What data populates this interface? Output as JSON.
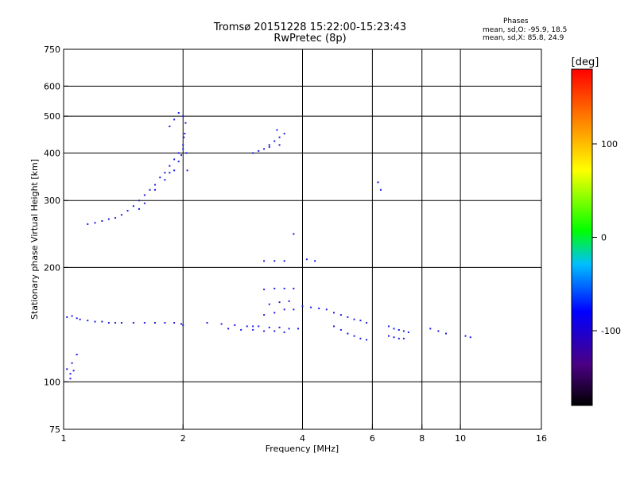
{
  "header": {
    "title_line1": "Tromsø 20151228 15:22:00-15:23:43",
    "title_line2": "RwPretec (8p)",
    "phases_heading": "Phases",
    "phases_o": "mean, sd,O: -95.9, 18.5",
    "phases_x": "mean, sd,X:  85.8, 24.9"
  },
  "chart_data": {
    "type": "scatter",
    "xlabel": "Frequency [MHz]",
    "ylabel": "Stationary phase Virtual Height [km]",
    "x_scale": "log",
    "y_scale": "log",
    "xlim": [
      1,
      16
    ],
    "ylim": [
      75,
      750
    ],
    "x_ticks": [
      1,
      2,
      4,
      6,
      8,
      10,
      16
    ],
    "y_ticks": [
      75,
      100,
      200,
      300,
      400,
      500,
      600,
      750
    ],
    "x_gridlines": [
      2,
      4,
      6,
      8,
      10
    ],
    "y_gridlines": [
      100,
      200,
      300,
      400,
      500,
      600
    ],
    "colorbar": {
      "label": "[deg]",
      "ticks": [
        100,
        0,
        -100
      ],
      "range": [
        -180,
        180
      ],
      "colormap": "rainbow"
    },
    "series": [
      {
        "points": [
          [
            1.02,
            148
          ],
          [
            1.05,
            149
          ],
          [
            1.08,
            147
          ],
          [
            1.1,
            146
          ],
          [
            1.15,
            145
          ],
          [
            1.2,
            144
          ],
          [
            1.25,
            144
          ],
          [
            1.3,
            143
          ],
          [
            1.35,
            143
          ],
          [
            1.4,
            143
          ],
          [
            1.5,
            143
          ],
          [
            1.6,
            143
          ],
          [
            1.7,
            143
          ],
          [
            1.8,
            143
          ],
          [
            1.9,
            143
          ],
          [
            1.98,
            142
          ],
          [
            2.0,
            141
          ],
          [
            1.02,
            108
          ],
          [
            1.04,
            105
          ],
          [
            1.05,
            112
          ],
          [
            1.08,
            118
          ],
          [
            1.04,
            102
          ],
          [
            1.06,
            107
          ],
          [
            1.15,
            260
          ],
          [
            1.2,
            262
          ],
          [
            1.25,
            265
          ],
          [
            1.3,
            268
          ],
          [
            1.35,
            270
          ],
          [
            1.4,
            275
          ],
          [
            1.45,
            282
          ],
          [
            1.5,
            290
          ],
          [
            1.55,
            300
          ],
          [
            1.6,
            310
          ],
          [
            1.65,
            320
          ],
          [
            1.7,
            330
          ],
          [
            1.75,
            345
          ],
          [
            1.8,
            355
          ],
          [
            1.85,
            370
          ],
          [
            1.9,
            385
          ],
          [
            1.95,
            400
          ],
          [
            2.0,
            420
          ],
          [
            2.02,
            450
          ],
          [
            2.03,
            480
          ],
          [
            1.55,
            285
          ],
          [
            1.6,
            295
          ],
          [
            1.7,
            320
          ],
          [
            1.8,
            340
          ],
          [
            1.85,
            355
          ],
          [
            1.9,
            360
          ],
          [
            1.95,
            380
          ],
          [
            1.98,
            395
          ],
          [
            2.0,
            410
          ],
          [
            2.01,
            440
          ],
          [
            1.9,
            490
          ],
          [
            1.95,
            510
          ],
          [
            2.0,
            500
          ],
          [
            1.85,
            470
          ],
          [
            2.04,
            400
          ],
          [
            2.05,
            360
          ],
          [
            2.3,
            143
          ],
          [
            2.5,
            142
          ],
          [
            2.7,
            141
          ],
          [
            2.9,
            140
          ],
          [
            3.1,
            140
          ],
          [
            3.3,
            139
          ],
          [
            3.5,
            139
          ],
          [
            3.7,
            138
          ],
          [
            3.9,
            138
          ],
          [
            2.6,
            138
          ],
          [
            2.8,
            137
          ],
          [
            3.0,
            137
          ],
          [
            3.2,
            136
          ],
          [
            3.4,
            136
          ],
          [
            3.6,
            135
          ],
          [
            3.0,
            140
          ],
          [
            3.2,
            150
          ],
          [
            3.4,
            152
          ],
          [
            3.6,
            155
          ],
          [
            3.8,
            155
          ],
          [
            3.3,
            160
          ],
          [
            3.5,
            162
          ],
          [
            3.7,
            163
          ],
          [
            3.2,
            175
          ],
          [
            3.4,
            176
          ],
          [
            3.6,
            176
          ],
          [
            3.8,
            176
          ],
          [
            3.2,
            208
          ],
          [
            3.4,
            208
          ],
          [
            3.6,
            208
          ],
          [
            3.0,
            400
          ],
          [
            3.1,
            405
          ],
          [
            3.2,
            410
          ],
          [
            3.3,
            420
          ],
          [
            3.4,
            430
          ],
          [
            3.5,
            440
          ],
          [
            3.6,
            450
          ],
          [
            3.5,
            420
          ],
          [
            3.3,
            415
          ],
          [
            3.45,
            460
          ],
          [
            4.0,
            158
          ],
          [
            4.2,
            157
          ],
          [
            4.4,
            156
          ],
          [
            4.6,
            155
          ],
          [
            4.8,
            152
          ],
          [
            5.0,
            150
          ],
          [
            5.2,
            148
          ],
          [
            5.4,
            146
          ],
          [
            5.6,
            145
          ],
          [
            5.8,
            143
          ],
          [
            4.8,
            140
          ],
          [
            5.0,
            137
          ],
          [
            5.2,
            134
          ],
          [
            5.4,
            132
          ],
          [
            5.6,
            130
          ],
          [
            5.8,
            129
          ],
          [
            6.6,
            140
          ],
          [
            6.8,
            138
          ],
          [
            7.0,
            137
          ],
          [
            7.2,
            136
          ],
          [
            7.4,
            135
          ],
          [
            6.6,
            132
          ],
          [
            6.8,
            131
          ],
          [
            7.0,
            130
          ],
          [
            7.2,
            130
          ],
          [
            8.4,
            138
          ],
          [
            8.8,
            136
          ],
          [
            9.2,
            134
          ],
          [
            10.3,
            132
          ],
          [
            10.6,
            131
          ],
          [
            3.8,
            245
          ],
          [
            4.3,
            208
          ],
          [
            4.1,
            210
          ],
          [
            6.2,
            335
          ],
          [
            6.3,
            320
          ]
        ]
      }
    ]
  }
}
